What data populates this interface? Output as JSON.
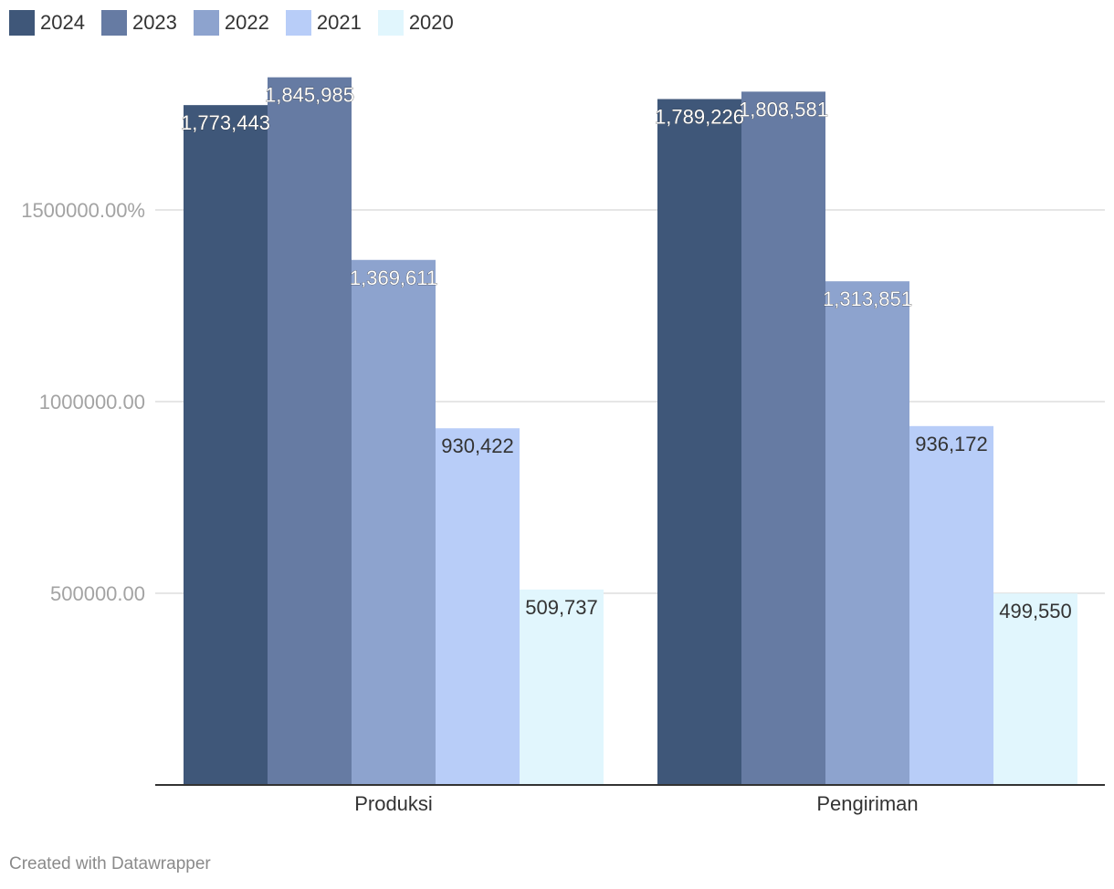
{
  "chart_data": {
    "type": "bar",
    "categories": [
      "Produksi",
      "Pengiriman"
    ],
    "series": [
      {
        "name": "2024",
        "color": "#3f5779",
        "values": [
          1773443,
          1789226
        ],
        "labels": [
          "1,773,443",
          "1,789,226"
        ]
      },
      {
        "name": "2023",
        "color": "#667ba3",
        "values": [
          1845985,
          1808581
        ],
        "labels": [
          "1,845,985",
          "1,808,581"
        ]
      },
      {
        "name": "2022",
        "color": "#8da3ce",
        "values": [
          1369611,
          1313851
        ],
        "labels": [
          "1,369,611",
          "1,313,851"
        ]
      },
      {
        "name": "2021",
        "color": "#b8cdf8",
        "values": [
          930422,
          936172
        ],
        "labels": [
          "930,422",
          "936,172"
        ]
      },
      {
        "name": "2020",
        "color": "#e1f6fd",
        "values": [
          509737,
          499550
        ],
        "labels": [
          "509,737",
          "499,550"
        ]
      }
    ],
    "yticks": [
      {
        "value": 500000,
        "label": "500000.00"
      },
      {
        "value": 1000000,
        "label": "1000000.00"
      },
      {
        "value": 1500000,
        "label": "1500000.00%"
      }
    ],
    "ylim": [
      0,
      2000000
    ],
    "grid": true,
    "legend_position": "top-left"
  },
  "footer": {
    "credit": "Created with Datawrapper"
  }
}
